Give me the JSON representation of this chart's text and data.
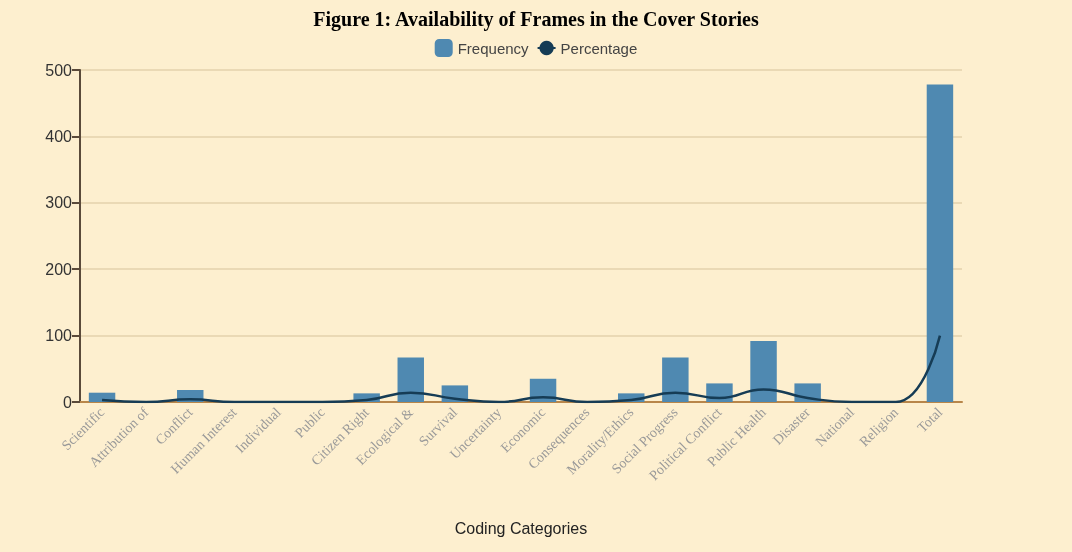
{
  "chart_data": {
    "type": "bar",
    "title": "Figure 1: Availability of Frames in the Cover Stories",
    "xlabel": "Coding Categories",
    "categories": [
      "Scientific",
      "Attribution of",
      "Conflict",
      "Human Interest",
      "Individual",
      "Public",
      "Citizen Right",
      "Ecological &",
      "Survival",
      "Uncertainty",
      "Economic",
      "Consequences",
      "Morality/Ethics",
      "Social Progress",
      "Political Conflict",
      "Public Health",
      "Disaster",
      "National",
      "Religion",
      "Total"
    ],
    "series": [
      {
        "name": "Frequency",
        "color": "#4f89b1",
        "values": [
          14,
          0,
          18,
          0,
          0,
          0,
          13,
          67,
          25,
          0,
          35,
          0,
          13,
          67,
          28,
          92,
          28,
          0,
          0,
          478
        ]
      },
      {
        "name": "Percentage",
        "type": "line",
        "color": "#163c55",
        "values": [
          3,
          0,
          4,
          0,
          0,
          0,
          3,
          14,
          5,
          0,
          7,
          0,
          3,
          14,
          6,
          19,
          6,
          0,
          0,
          100
        ]
      }
    ],
    "ylim": [
      0,
      500
    ],
    "yticks": [
      0,
      100,
      200,
      300,
      400,
      500
    ],
    "grid": "y",
    "legend": "top",
    "marker": "none"
  }
}
